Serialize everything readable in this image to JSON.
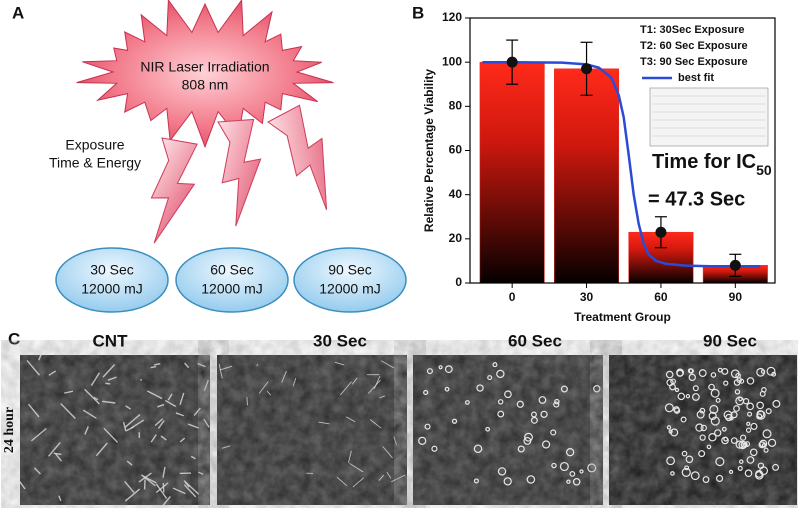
{
  "panel_a": {
    "label": "A",
    "source": [
      "NIR Laser Irradiation",
      "808 nm"
    ],
    "exposure_label": [
      "Exposure",
      "Time & Energy"
    ],
    "doses": [
      [
        "30 Sec",
        "12000 mJ"
      ],
      [
        "60 Sec",
        "12000 mJ"
      ],
      [
        "90 Sec",
        "12000 mJ"
      ]
    ]
  },
  "chart_data": {
    "type": "bar",
    "panel_label": "B",
    "x_label": "Treatment Group",
    "y_label": "Relative Percentage Viability",
    "x": [
      0,
      30,
      60,
      90
    ],
    "series": [
      {
        "color": "#e8241c",
        "values": [
          100,
          97,
          23,
          8
        ],
        "errors": [
          10,
          12,
          7,
          5
        ]
      }
    ],
    "fit": {
      "name": "best fit",
      "color": "#2a4bd7",
      "x": [
        -12,
        0,
        20,
        30,
        35,
        40,
        43,
        45,
        47,
        49,
        51,
        53,
        55,
        58,
        62,
        70,
        80,
        90,
        100
      ],
      "values": [
        100,
        100,
        99.8,
        99,
        97.5,
        93,
        85,
        75,
        58,
        40,
        27,
        18,
        13,
        10,
        8.7,
        7.9,
        7.6,
        7.5,
        7.5
      ]
    },
    "legend_notes": [
      "T1: 30Sec Exposure",
      "T2: 60 Sec Exposure",
      "T3: 90 Sec Exposure"
    ],
    "annotation": {
      "text": "Time for IC",
      "subscript": "50",
      "value_text": "= 47.3 Sec"
    },
    "xlim": [
      -17,
      106
    ],
    "xticks": [
      0,
      30,
      60,
      90
    ],
    "ylim": [
      0,
      120
    ],
    "yticks": [
      0,
      20,
      40,
      60,
      80,
      100,
      120
    ]
  },
  "panel_c": {
    "label": "C",
    "row_label": "24 hour",
    "columns": [
      "CNT",
      "30 Sec",
      "60 Sec",
      "90 Sec"
    ]
  }
}
